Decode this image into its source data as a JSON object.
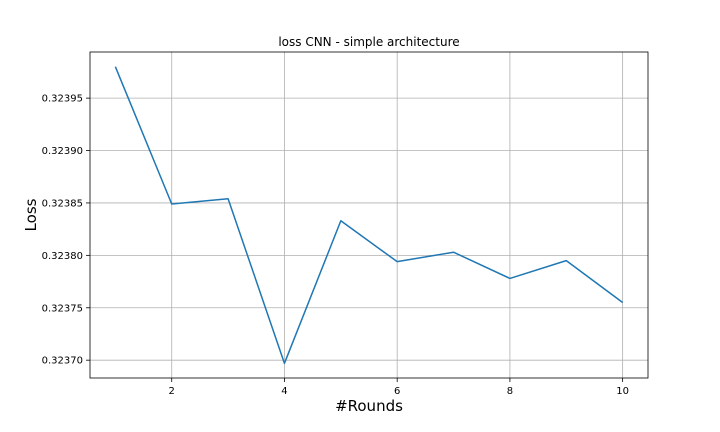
{
  "chart_data": {
    "type": "line",
    "title": "loss CNN - simple architecture",
    "xlabel": "#Rounds",
    "ylabel": "Loss",
    "x": [
      1,
      2,
      3,
      4,
      5,
      6,
      7,
      8,
      9,
      10
    ],
    "series": [
      {
        "values": [
          0.32398,
          0.323849,
          0.323854,
          0.323697,
          0.323833,
          0.323794,
          0.323803,
          0.323778,
          0.323795,
          0.323755
        ],
        "color": "#1f77b4"
      }
    ],
    "xlim": [
      0.55,
      10.45
    ],
    "ylim": [
      0.323683,
      0.323994
    ],
    "xticks": [
      2,
      4,
      6,
      8,
      10
    ],
    "xtick_labels": [
      "2",
      "4",
      "6",
      "8",
      "10"
    ],
    "yticks": [
      0.3237,
      0.32375,
      0.3238,
      0.32385,
      0.3239,
      0.32395
    ],
    "ytick_labels": [
      "0.32370",
      "0.32375",
      "0.32380",
      "0.32385",
      "0.32390",
      "0.32395"
    ],
    "grid": true,
    "legend": false
  }
}
